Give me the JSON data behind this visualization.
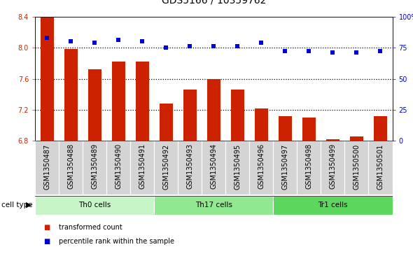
{
  "title": "GDS5166 / 10359762",
  "samples": [
    "GSM1350487",
    "GSM1350488",
    "GSM1350489",
    "GSM1350490",
    "GSM1350491",
    "GSM1350492",
    "GSM1350493",
    "GSM1350494",
    "GSM1350495",
    "GSM1350496",
    "GSM1350497",
    "GSM1350498",
    "GSM1350499",
    "GSM1350500",
    "GSM1350501"
  ],
  "transformed_counts": [
    8.4,
    7.98,
    7.72,
    7.82,
    7.82,
    7.28,
    7.46,
    7.6,
    7.46,
    7.22,
    7.12,
    7.1,
    6.82,
    6.86,
    7.12
  ],
  "percentile_ranks": [
    83,
    80,
    79,
    81,
    80,
    75,
    76,
    76,
    76,
    79,
    72,
    72,
    71,
    71,
    72
  ],
  "cell_types": [
    {
      "label": "Th0 cells",
      "start": 0,
      "end": 5,
      "color": "#c8f5c8"
    },
    {
      "label": "Th17 cells",
      "start": 5,
      "end": 10,
      "color": "#90e890"
    },
    {
      "label": "Tr1 cells",
      "start": 10,
      "end": 15,
      "color": "#5cd65c"
    }
  ],
  "bar_color": "#cc2200",
  "dot_color": "#0000cc",
  "ylim_left": [
    6.8,
    8.4
  ],
  "ylim_right": [
    0,
    100
  ],
  "yticks_left": [
    6.8,
    7.2,
    7.6,
    8.0,
    8.4
  ],
  "yticks_right": [
    0,
    25,
    50,
    75,
    100
  ],
  "grid_values": [
    8.0,
    7.6,
    7.2
  ],
  "legend_items": [
    {
      "label": "transformed count",
      "color": "#cc2200"
    },
    {
      "label": "percentile rank within the sample",
      "color": "#0000cc"
    }
  ],
  "cell_type_label": "cell type",
  "title_fontsize": 10,
  "tick_fontsize": 7,
  "label_fontsize": 7,
  "axis_color_left": "#cc2200",
  "axis_color_right": "#0000cc",
  "xtick_bg": "#d4d4d4",
  "xtick_border": "#aaaaaa",
  "plot_bg": "#ffffff",
  "bar_width": 0.55
}
